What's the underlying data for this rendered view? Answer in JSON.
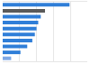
{
  "chart_data": {
    "type": "bar",
    "orientation": "horizontal",
    "categories": [
      null,
      null,
      null,
      null,
      null,
      null,
      null,
      null,
      null,
      null
    ],
    "values": [
      79,
      50,
      45,
      42,
      40,
      38,
      35,
      29,
      21,
      10
    ],
    "colors": [
      "#2f7ed8",
      "#5a5a5a",
      "#2f7ed8",
      "#2f7ed8",
      "#2f7ed8",
      "#2f7ed8",
      "#2f7ed8",
      "#2f7ed8",
      "#2f7ed8",
      "#7fa9e6"
    ],
    "xlim": [
      0,
      100
    ],
    "xticks": [
      0,
      20,
      40,
      60,
      80,
      100
    ],
    "grid": true,
    "tick_labels": false
  }
}
